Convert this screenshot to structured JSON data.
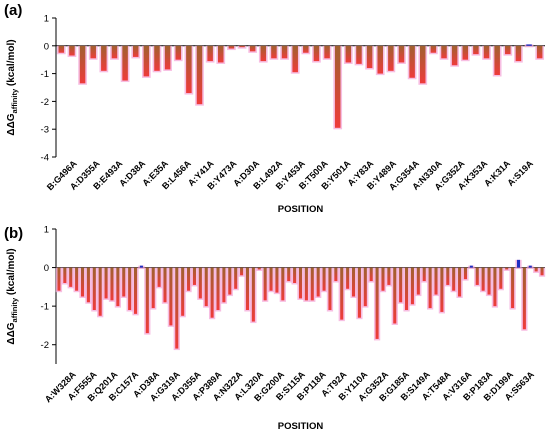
{
  "chart_data": [
    {
      "type": "bar",
      "panel_label": "(a)",
      "xlabel": "POSITION",
      "ylabel_main": "ΔΔG",
      "ylabel_sub": "affinity",
      "ylabel_unit": " (kcal/mol)",
      "ylim": [
        -4,
        1
      ],
      "yticks": [
        1,
        0,
        -1,
        -2,
        -3,
        -4
      ],
      "grid": false,
      "colors": {
        "gradient_top": "#a0612f",
        "gradient_bottom": "#ef3b3b",
        "positive": "#1f2fc4",
        "shadow": "#f4a8d8"
      },
      "category_labels": [
        "B:G496A",
        "A:D355A",
        "B:E493A",
        "A:D38A",
        "A:E35A",
        "B:L456A",
        "A:Y41A",
        "B:Y473A",
        "A:D30A",
        "B:L492A",
        "B:Y453A",
        "B:T500A",
        "B:Y501A",
        "A:Y83A",
        "B:Y489A",
        "A:G354A",
        "A:N330A",
        "A:G352A",
        "A:K353A",
        "A:K31A",
        "A:S19A"
      ],
      "values": [
        -0.25,
        -0.35,
        -1.35,
        -0.45,
        -0.9,
        -0.45,
        -1.25,
        -0.4,
        -1.1,
        -0.9,
        -0.85,
        -0.5,
        -1.7,
        -2.1,
        -0.55,
        -0.6,
        -0.1,
        -0.05,
        -0.2,
        -0.55,
        -0.45,
        -0.45,
        -0.95,
        -0.25,
        -0.55,
        -0.45,
        -2.95,
        -0.6,
        -0.65,
        -0.8,
        -1.0,
        -0.9,
        -0.6,
        -1.15,
        -1.35,
        -0.25,
        -0.45,
        -0.7,
        -0.5,
        -0.3,
        -0.45,
        -1.05,
        -0.3,
        -0.55,
        0.05,
        -0.45
      ]
    },
    {
      "type": "bar",
      "panel_label": "(b)",
      "xlabel": "POSITION",
      "ylabel_main": "ΔΔG",
      "ylabel_sub": "affinity",
      "ylabel_unit": " (kcal/mol)",
      "ylim": [
        -2.5,
        1
      ],
      "yticks": [
        1,
        0,
        -1,
        -2
      ],
      "grid": false,
      "colors": {
        "gradient_top": "#a0612f",
        "gradient_bottom": "#ef3b3b",
        "positive": "#1f2fc4",
        "shadow": "#f4a8d8"
      },
      "category_labels": [
        "A:W328A",
        "A:F555A",
        "B:Q201A",
        "B:C157A",
        "A:D38A",
        "A:G319A",
        "A:D355A",
        "A:P389A",
        "A:N322A",
        "A:L320A",
        "B:G200A",
        "B:S115A",
        "B:P118A",
        "A:T92A",
        "B:Y110A",
        "A:G352A",
        "B:G185A",
        "B:S149A",
        "A:T548A",
        "A:V316A",
        "B:P183A",
        "B:D199A",
        "A:S563A"
      ],
      "values": [
        -0.6,
        -0.4,
        -0.5,
        -0.6,
        -0.75,
        -0.9,
        -1.1,
        -1.25,
        -0.8,
        -0.85,
        -1.0,
        -0.75,
        -1.1,
        -1.2,
        0.05,
        -1.7,
        -1.05,
        -0.5,
        -0.9,
        -1.5,
        -2.1,
        -1.25,
        -0.6,
        -0.45,
        -0.8,
        -1.0,
        -1.3,
        -1.1,
        -0.9,
        -0.7,
        -0.55,
        -0.2,
        -1.1,
        -1.4,
        -0.05,
        -0.85,
        -0.6,
        -0.65,
        -0.85,
        -0.35,
        -0.4,
        -0.8,
        -0.85,
        -0.85,
        -0.75,
        -0.6,
        -1.1,
        -0.35,
        -1.35,
        -0.55,
        -0.75,
        -1.3,
        -1.0,
        -0.35,
        -1.85,
        -0.6,
        -0.45,
        -1.45,
        -0.9,
        -1.1,
        -0.95,
        -0.7,
        -0.35,
        -1.05,
        -0.7,
        -1.15,
        -0.45,
        -0.6,
        -0.75,
        -0.3,
        0.05,
        -0.45,
        -0.6,
        -0.7,
        -1.0,
        -0.55,
        -0.05,
        -1.05,
        0.2,
        -1.6,
        0.05,
        -0.1,
        -0.2
      ]
    }
  ]
}
